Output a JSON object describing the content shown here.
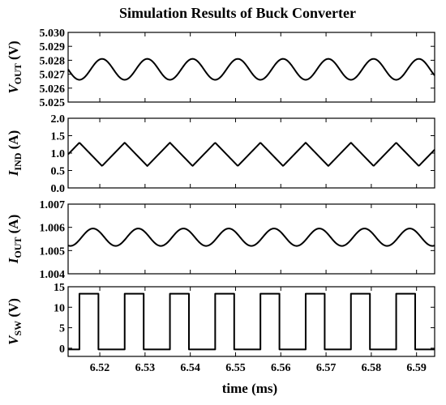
{
  "chart_data": [
    {
      "type": "line",
      "title": "Simulation Results of Buck Converter",
      "ylabel": {
        "main": "V",
        "sub": "OUT",
        "unit": " (V)"
      },
      "ylim": [
        5.025,
        5.03
      ],
      "yticks": [
        "5.030",
        "5.029",
        "5.028",
        "5.027",
        "5.026",
        "5.025"
      ],
      "xlim": [
        6.513,
        6.594
      ],
      "series": [
        {
          "waveform": "sine",
          "period_ms": 0.01,
          "min": 5.0266,
          "max": 5.0281,
          "peak_at_ms": 6.5205
        }
      ]
    },
    {
      "type": "line",
      "ylabel": {
        "main": "I",
        "sub": "IND",
        "unit": " (A)"
      },
      "ylim": [
        0.0,
        2.0
      ],
      "yticks": [
        "2.0",
        "1.5",
        "1.0",
        "0.5",
        "0.0"
      ],
      "xlim": [
        6.513,
        6.594
      ],
      "series": [
        {
          "waveform": "triangle",
          "period_ms": 0.01,
          "min": 0.63,
          "max": 1.3,
          "peak_at_ms": 6.5155,
          "trough_at_ms": 6.5205
        }
      ]
    },
    {
      "type": "line",
      "ylabel": {
        "main": "I",
        "sub": "OUT",
        "unit": " (A)"
      },
      "ylim": [
        1.004,
        1.007
      ],
      "yticks": [
        "1.007",
        "1.006",
        "1.005",
        "1.004"
      ],
      "xlim": [
        6.513,
        6.594
      ],
      "series": [
        {
          "waveform": "sine",
          "period_ms": 0.01,
          "min": 1.0052,
          "max": 1.00595,
          "peak_at_ms": 6.5185
        }
      ]
    },
    {
      "type": "line",
      "ylabel": {
        "main": "V",
        "sub": "SW",
        "unit": " (V)"
      },
      "ylim": [
        -2,
        15
      ],
      "yticks": [
        "15",
        "10",
        "5",
        "0"
      ],
      "xlim": [
        6.513,
        6.594
      ],
      "xlabel": "time (ms)",
      "xticks": [
        "6.52",
        "6.53",
        "6.54",
        "6.55",
        "6.56",
        "6.57",
        "6.58",
        "6.59"
      ],
      "series": [
        {
          "waveform": "square",
          "period_ms": 0.01,
          "high": 13.3,
          "low": -0.3,
          "rise_at_ms": 6.5155,
          "duty": 0.42
        }
      ]
    }
  ]
}
